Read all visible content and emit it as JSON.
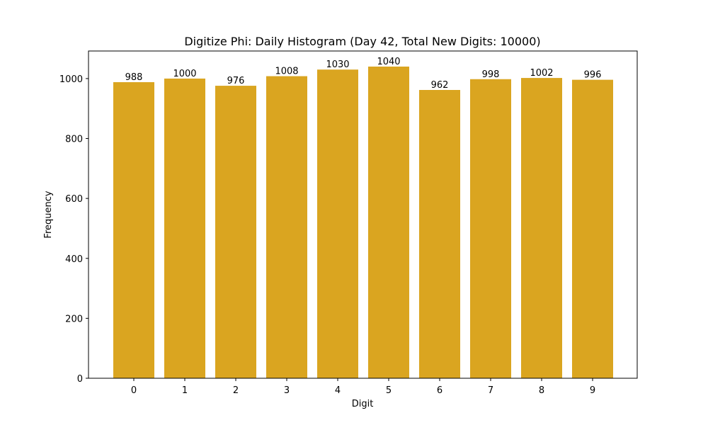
{
  "chart_data": {
    "type": "bar",
    "title": "Digitize Phi: Daily Histogram (Day 42, Total New Digits: 10000)",
    "xlabel": "Digit",
    "ylabel": "Frequency",
    "categories": [
      "0",
      "1",
      "2",
      "3",
      "4",
      "5",
      "6",
      "7",
      "8",
      "9"
    ],
    "values": [
      988,
      1000,
      976,
      1008,
      1030,
      1040,
      962,
      998,
      1002,
      996
    ],
    "data_labels": [
      "988",
      "1000",
      "976",
      "1008",
      "1030",
      "1040",
      "962",
      "998",
      "1002",
      "996"
    ],
    "yticks": [
      0,
      200,
      400,
      600,
      800,
      1000
    ],
    "ylim": [
      0,
      1092
    ],
    "grid": false,
    "legend": null,
    "bar_color": "#DAA520"
  }
}
